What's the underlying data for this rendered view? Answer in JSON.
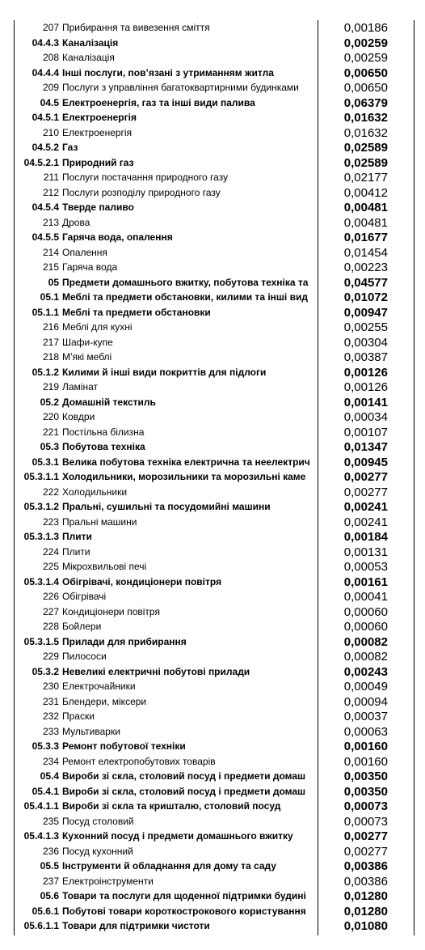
{
  "rows": [
    {
      "code": "207",
      "name": "Прибирання та вивезення сміття",
      "value": "0,00186",
      "bold": false
    },
    {
      "code": "04.4.3",
      "name": "Каналізація",
      "value": "0,00259",
      "bold": true
    },
    {
      "code": "208",
      "name": "Каналізація",
      "value": "0,00259",
      "bold": false
    },
    {
      "code": "04.4.4",
      "name": "Інші послуги, пов’язані з утриманням житла",
      "value": "0,00650",
      "bold": true
    },
    {
      "code": "209",
      "name": "Послуги з управління багатоквартирними будинками",
      "value": "0,00650",
      "bold": false
    },
    {
      "code": "04.5",
      "name": "Електроенергія, газ та інші види палива",
      "value": "0,06379",
      "bold": true
    },
    {
      "code": "04.5.1",
      "name": "Електроенергія",
      "value": "0,01632",
      "bold": true
    },
    {
      "code": "210",
      "name": "Електроенергія",
      "value": "0,01632",
      "bold": false
    },
    {
      "code": "04.5.2",
      "name": "Газ",
      "value": "0,02589",
      "bold": true
    },
    {
      "code": "04.5.2.1",
      "name": "Природний газ",
      "value": "0,02589",
      "bold": true
    },
    {
      "code": "211",
      "name": "Послуги постачання природного газу",
      "value": "0,02177",
      "bold": false
    },
    {
      "code": "212",
      "name": "Послуги розподілу природного газу",
      "value": "0,00412",
      "bold": false
    },
    {
      "code": "04.5.4",
      "name": "Тверде паливо",
      "value": "0,00481",
      "bold": true
    },
    {
      "code": "213",
      "name": "Дрова",
      "value": "0,00481",
      "bold": false
    },
    {
      "code": "04.5.5",
      "name": "Гаряча вода, опалення",
      "value": "0,01677",
      "bold": true
    },
    {
      "code": "214",
      "name": "Опалення",
      "value": "0,01454",
      "bold": false
    },
    {
      "code": "215",
      "name": "Гаряча вода",
      "value": "0,00223",
      "bold": false
    },
    {
      "code": "05",
      "name": "Предмети домашнього вжитку, побутова техніка та",
      "value": "0,04577",
      "bold": true
    },
    {
      "code": "05.1",
      "name": "Меблі та предмети обстановки, килими та інші вид",
      "value": "0,01072",
      "bold": true
    },
    {
      "code": "05.1.1",
      "name": "Меблі та предмети обстановки",
      "value": "0,00947",
      "bold": true
    },
    {
      "code": "216",
      "name": "Меблі для кухні",
      "value": "0,00255",
      "bold": false
    },
    {
      "code": "217",
      "name": "Шафи-купе",
      "value": "0,00304",
      "bold": false
    },
    {
      "code": "218",
      "name": "М’які меблі",
      "value": "0,00387",
      "bold": false
    },
    {
      "code": "05.1.2",
      "name": "Килими й інші види покриттів для підлоги",
      "value": "0,00126",
      "bold": true
    },
    {
      "code": "219",
      "name": "Ламінат",
      "value": "0,00126",
      "bold": false
    },
    {
      "code": "05.2",
      "name": "Домашній текстиль",
      "value": "0,00141",
      "bold": true
    },
    {
      "code": "220",
      "name": "Ковдри",
      "value": "0,00034",
      "bold": false
    },
    {
      "code": "221",
      "name": "Постільна білизна",
      "value": "0,00107",
      "bold": false
    },
    {
      "code": "05.3",
      "name": "Побутова техніка",
      "value": "0,01347",
      "bold": true
    },
    {
      "code": "05.3.1",
      "name": "Велика побутова техніка електрична та неелектрич",
      "value": "0,00945",
      "bold": true
    },
    {
      "code": "05.3.1.1",
      "name": "Холодильники, морозильники та морозильні каме",
      "value": "0,00277",
      "bold": true
    },
    {
      "code": "222",
      "name": "Холодильники",
      "value": "0,00277",
      "bold": false
    },
    {
      "code": "05.3.1.2",
      "name": "Пральні, сушильні та посудомийні машини",
      "value": "0,00241",
      "bold": true
    },
    {
      "code": "223",
      "name": "Пральні машини",
      "value": "0,00241",
      "bold": false
    },
    {
      "code": "05.3.1.3",
      "name": "Плити",
      "value": "0,00184",
      "bold": true
    },
    {
      "code": "224",
      "name": "Плити",
      "value": "0,00131",
      "bold": false
    },
    {
      "code": "225",
      "name": "Мікрохвильові печі",
      "value": "0,00053",
      "bold": false
    },
    {
      "code": "05.3.1.4",
      "name": "Обігрівачі, кондиціонери повітря",
      "value": "0,00161",
      "bold": true
    },
    {
      "code": "226",
      "name": "Обігрівачі",
      "value": "0,00041",
      "bold": false
    },
    {
      "code": "227",
      "name": "Кондиціонери повітря",
      "value": "0,00060",
      "bold": false
    },
    {
      "code": "228",
      "name": "Бойлери",
      "value": "0,00060",
      "bold": false
    },
    {
      "code": "05.3.1.5",
      "name": "Прилади для прибирання",
      "value": "0,00082",
      "bold": true
    },
    {
      "code": "229",
      "name": "Пилососи",
      "value": "0,00082",
      "bold": false
    },
    {
      "code": "05.3.2",
      "name": "Невеликі електричні побутові прилади",
      "value": "0,00243",
      "bold": true
    },
    {
      "code": "230",
      "name": "Електрочайники",
      "value": "0,00049",
      "bold": false
    },
    {
      "code": "231",
      "name": "Блендери, міксери",
      "value": "0,00094",
      "bold": false
    },
    {
      "code": "232",
      "name": "Праски",
      "value": "0,00037",
      "bold": false
    },
    {
      "code": "233",
      "name": "Мультиварки",
      "value": "0,00063",
      "bold": false
    },
    {
      "code": "05.3.3",
      "name": "Ремонт побутової техніки",
      "value": "0,00160",
      "bold": true
    },
    {
      "code": "234",
      "name": "Ремонт електропобутових товарів",
      "value": "0,00160",
      "bold": false
    },
    {
      "code": "05.4",
      "name": "Вироби зі скла, столовий посуд і предмети домаш",
      "value": "0,00350",
      "bold": true
    },
    {
      "code": "05.4.1",
      "name": "Вироби зі скла, столовий посуд і предмети домаш",
      "value": "0,00350",
      "bold": true
    },
    {
      "code": "05.4.1.1",
      "name": "Вироби зі скла та кришталю, столовий посуд",
      "value": "0,00073",
      "bold": true
    },
    {
      "code": "235",
      "name": "Посуд столовий",
      "value": "0,00073",
      "bold": false
    },
    {
      "code": "05.4.1.3",
      "name": "Кухонний посуд і предмети домашнього вжитку",
      "value": "0,00277",
      "bold": true
    },
    {
      "code": "236",
      "name": "Посуд кухонний",
      "value": "0,00277",
      "bold": false
    },
    {
      "code": "05.5",
      "name": "Інструменти й обладнання для дому та саду",
      "value": "0,00386",
      "bold": true
    },
    {
      "code": "237",
      "name": "Електроінструменти",
      "value": "0,00386",
      "bold": false
    },
    {
      "code": "05.6",
      "name": "Товари та послуги для щоденної підтримки будині",
      "value": "0,01280",
      "bold": true
    },
    {
      "code": "05.6.1",
      "name": "Побутові товари короткострокового користування",
      "value": "0,01280",
      "bold": true
    },
    {
      "code": "05.6.1.1",
      "name": "Товари для підтримки чистоти",
      "value": "0,01080",
      "bold": true
    }
  ]
}
